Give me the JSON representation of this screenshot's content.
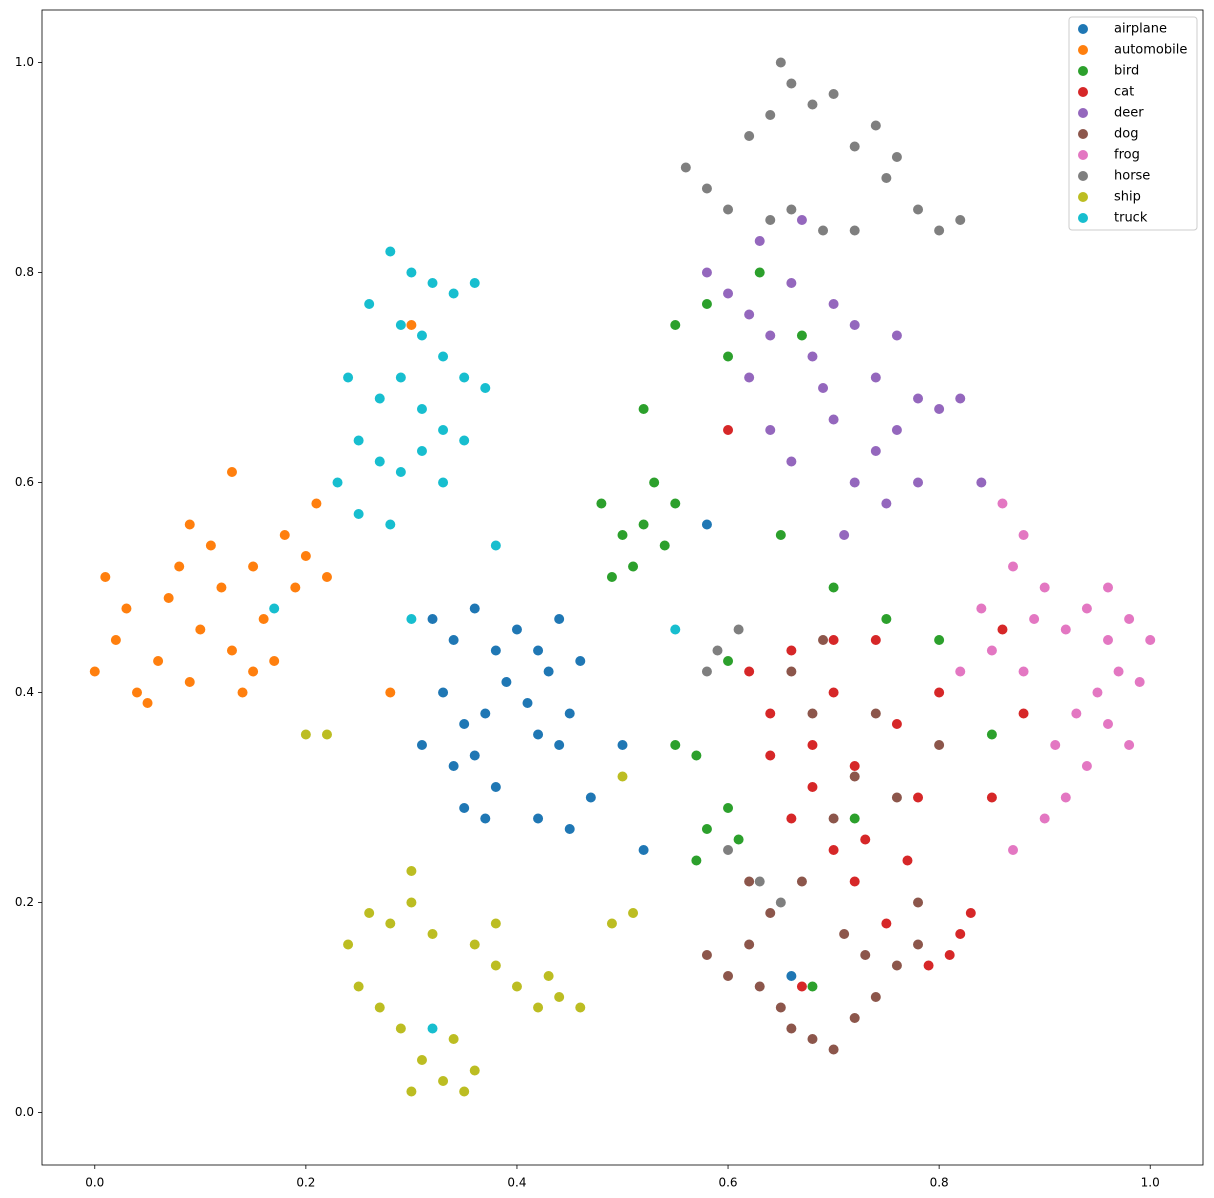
{
  "chart_data": {
    "type": "scatter",
    "xlim": [
      -0.05,
      1.05
    ],
    "ylim": [
      -0.05,
      1.05
    ],
    "xticks": [
      {
        "value": 0,
        "label": "0.0"
      },
      {
        "value": 0.2,
        "label": "0.2"
      },
      {
        "value": 0.4,
        "label": "0.4"
      },
      {
        "value": 0.6,
        "label": "0.6"
      },
      {
        "value": 0.8,
        "label": "0.8"
      },
      {
        "value": 1,
        "label": "1.0"
      }
    ],
    "yticks": [
      {
        "value": 0,
        "label": "0.0"
      },
      {
        "value": 0.2,
        "label": "0.2"
      },
      {
        "value": 0.4,
        "label": "0.4"
      },
      {
        "value": 0.6,
        "label": "0.6"
      },
      {
        "value": 0.8,
        "label": "0.8"
      },
      {
        "value": 1,
        "label": "1.0"
      }
    ],
    "grid": false,
    "legend": "upper right",
    "series": [
      {
        "name": "airplane",
        "color": "#1f77b4",
        "x": [
          0.32,
          0.34,
          0.36,
          0.38,
          0.4,
          0.42,
          0.44,
          0.46,
          0.33,
          0.35,
          0.37,
          0.39,
          0.41,
          0.43,
          0.45,
          0.31,
          0.34,
          0.36,
          0.38,
          0.42,
          0.44,
          0.35,
          0.37,
          0.42,
          0.45,
          0.47,
          0.5,
          0.52,
          0.58,
          0.66
        ],
        "y": [
          0.47,
          0.45,
          0.48,
          0.44,
          0.46,
          0.44,
          0.47,
          0.43,
          0.4,
          0.37,
          0.38,
          0.41,
          0.39,
          0.42,
          0.38,
          0.35,
          0.33,
          0.34,
          0.31,
          0.36,
          0.35,
          0.29,
          0.28,
          0.28,
          0.27,
          0.3,
          0.35,
          0.25,
          0.56,
          0.13
        ]
      },
      {
        "name": "automobile",
        "color": "#ff7f0e",
        "x": [
          0.0,
          0.02,
          0.01,
          0.03,
          0.04,
          0.06,
          0.07,
          0.08,
          0.09,
          0.1,
          0.11,
          0.12,
          0.13,
          0.14,
          0.15,
          0.16,
          0.17,
          0.18,
          0.19,
          0.2,
          0.21,
          0.22,
          0.13,
          0.05,
          0.15,
          0.09,
          0.3,
          0.28
        ],
        "y": [
          0.42,
          0.45,
          0.51,
          0.48,
          0.4,
          0.43,
          0.49,
          0.52,
          0.41,
          0.46,
          0.54,
          0.5,
          0.44,
          0.4,
          0.52,
          0.47,
          0.43,
          0.55,
          0.5,
          0.53,
          0.58,
          0.51,
          0.61,
          0.39,
          0.42,
          0.56,
          0.75,
          0.4
        ]
      },
      {
        "name": "bird",
        "color": "#2ca02c",
        "x": [
          0.48,
          0.5,
          0.52,
          0.53,
          0.51,
          0.55,
          0.54,
          0.49,
          0.57,
          0.55,
          0.58,
          0.6,
          0.57,
          0.61,
          0.55,
          0.58,
          0.6,
          0.63,
          0.67,
          0.65,
          0.7,
          0.75,
          0.8,
          0.85,
          0.72,
          0.68,
          0.52,
          0.6
        ],
        "y": [
          0.58,
          0.55,
          0.56,
          0.6,
          0.52,
          0.58,
          0.54,
          0.51,
          0.34,
          0.35,
          0.27,
          0.29,
          0.24,
          0.26,
          0.75,
          0.77,
          0.72,
          0.8,
          0.74,
          0.55,
          0.5,
          0.47,
          0.45,
          0.36,
          0.28,
          0.12,
          0.67,
          0.43
        ]
      },
      {
        "name": "cat",
        "color": "#d62728",
        "x": [
          0.62,
          0.64,
          0.66,
          0.68,
          0.7,
          0.72,
          0.74,
          0.76,
          0.78,
          0.8,
          0.82,
          0.83,
          0.81,
          0.7,
          0.72,
          0.75,
          0.66,
          0.68,
          0.73,
          0.77,
          0.79,
          0.85,
          0.88,
          0.86,
          0.7,
          0.64,
          0.67,
          0.6
        ],
        "y": [
          0.42,
          0.38,
          0.44,
          0.35,
          0.4,
          0.33,
          0.45,
          0.37,
          0.3,
          0.4,
          0.17,
          0.19,
          0.15,
          0.25,
          0.22,
          0.18,
          0.28,
          0.31,
          0.26,
          0.24,
          0.14,
          0.3,
          0.38,
          0.46,
          0.45,
          0.34,
          0.12,
          0.65
        ]
      },
      {
        "name": "deer",
        "color": "#9467bd",
        "x": [
          0.58,
          0.6,
          0.62,
          0.64,
          0.66,
          0.68,
          0.7,
          0.72,
          0.74,
          0.76,
          0.78,
          0.8,
          0.82,
          0.64,
          0.66,
          0.7,
          0.72,
          0.74,
          0.76,
          0.78,
          0.67,
          0.63,
          0.69,
          0.75,
          0.62,
          0.71,
          0.84
        ],
        "y": [
          0.8,
          0.78,
          0.76,
          0.74,
          0.79,
          0.72,
          0.77,
          0.75,
          0.7,
          0.74,
          0.68,
          0.67,
          0.68,
          0.65,
          0.62,
          0.66,
          0.6,
          0.63,
          0.65,
          0.6,
          0.85,
          0.83,
          0.69,
          0.58,
          0.7,
          0.55,
          0.6
        ]
      },
      {
        "name": "dog",
        "color": "#8c564b",
        "x": [
          0.58,
          0.6,
          0.62,
          0.63,
          0.65,
          0.66,
          0.68,
          0.7,
          0.72,
          0.74,
          0.76,
          0.78,
          0.64,
          0.67,
          0.7,
          0.72,
          0.74,
          0.68,
          0.66,
          0.76,
          0.78,
          0.62,
          0.71,
          0.73,
          0.69,
          0.8
        ],
        "y": [
          0.15,
          0.13,
          0.16,
          0.12,
          0.1,
          0.08,
          0.07,
          0.06,
          0.09,
          0.11,
          0.14,
          0.16,
          0.19,
          0.22,
          0.28,
          0.32,
          0.38,
          0.38,
          0.42,
          0.3,
          0.2,
          0.22,
          0.17,
          0.15,
          0.45,
          0.35
        ]
      },
      {
        "name": "frog",
        "color": "#e377c2",
        "x": [
          0.86,
          0.88,
          0.87,
          0.9,
          0.92,
          0.94,
          0.96,
          0.98,
          1.0,
          0.97,
          0.95,
          0.99,
          0.93,
          0.96,
          0.91,
          0.94,
          0.92,
          0.88,
          0.85,
          0.89,
          0.84,
          0.98,
          0.9,
          0.87,
          0.82,
          0.96
        ],
        "y": [
          0.58,
          0.55,
          0.52,
          0.5,
          0.46,
          0.48,
          0.45,
          0.47,
          0.45,
          0.42,
          0.4,
          0.41,
          0.38,
          0.37,
          0.35,
          0.33,
          0.3,
          0.42,
          0.44,
          0.47,
          0.48,
          0.35,
          0.28,
          0.25,
          0.42,
          0.5
        ]
      },
      {
        "name": "horse",
        "color": "#7f7f7f",
        "x": [
          0.56,
          0.58,
          0.6,
          0.62,
          0.64,
          0.66,
          0.65,
          0.68,
          0.7,
          0.72,
          0.74,
          0.76,
          0.78,
          0.8,
          0.82,
          0.69,
          0.64,
          0.66,
          0.72,
          0.59,
          0.61,
          0.6,
          0.63,
          0.65,
          0.58,
          0.75
        ],
        "y": [
          0.9,
          0.88,
          0.86,
          0.93,
          0.95,
          0.98,
          1.0,
          0.96,
          0.97,
          0.92,
          0.94,
          0.91,
          0.86,
          0.84,
          0.85,
          0.84,
          0.85,
          0.86,
          0.84,
          0.44,
          0.46,
          0.25,
          0.22,
          0.2,
          0.42,
          0.89
        ]
      },
      {
        "name": "ship",
        "color": "#bcbd22",
        "x": [
          0.24,
          0.26,
          0.28,
          0.3,
          0.32,
          0.25,
          0.27,
          0.29,
          0.31,
          0.33,
          0.35,
          0.34,
          0.36,
          0.3,
          0.38,
          0.36,
          0.4,
          0.42,
          0.44,
          0.46,
          0.43,
          0.38,
          0.49,
          0.51,
          0.3,
          0.2,
          0.22,
          0.5
        ],
        "y": [
          0.16,
          0.19,
          0.18,
          0.2,
          0.17,
          0.12,
          0.1,
          0.08,
          0.05,
          0.03,
          0.02,
          0.07,
          0.04,
          0.02,
          0.14,
          0.16,
          0.12,
          0.1,
          0.11,
          0.1,
          0.13,
          0.18,
          0.18,
          0.19,
          0.23,
          0.36,
          0.36,
          0.32
        ]
      },
      {
        "name": "truck",
        "color": "#17becf",
        "x": [
          0.28,
          0.3,
          0.32,
          0.34,
          0.36,
          0.26,
          0.29,
          0.31,
          0.33,
          0.35,
          0.37,
          0.24,
          0.27,
          0.29,
          0.31,
          0.33,
          0.35,
          0.25,
          0.27,
          0.29,
          0.31,
          0.33,
          0.23,
          0.25,
          0.28,
          0.38,
          0.32,
          0.3,
          0.17,
          0.55
        ],
        "y": [
          0.82,
          0.8,
          0.79,
          0.78,
          0.79,
          0.77,
          0.75,
          0.74,
          0.72,
          0.7,
          0.69,
          0.7,
          0.68,
          0.7,
          0.67,
          0.65,
          0.64,
          0.64,
          0.62,
          0.61,
          0.63,
          0.6,
          0.6,
          0.57,
          0.56,
          0.54,
          0.08,
          0.47,
          0.48,
          0.46
        ]
      }
    ]
  }
}
